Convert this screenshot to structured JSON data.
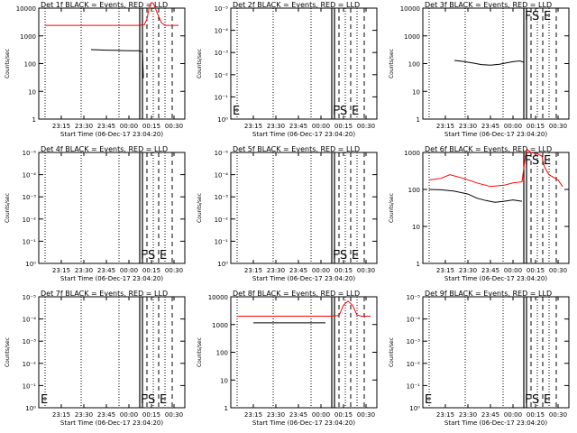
{
  "colors": {
    "events": "#000000",
    "lld": "#ff0000",
    "frame": "#000000"
  },
  "chart_data": [
    {
      "type": "line",
      "title": "Det 1f BLACK = Events, RED = LLD",
      "ylabel": "Counts/sec",
      "xlabel": "Start Time (06-Dec-17 23:04:20)",
      "ylog": true,
      "yticks": [
        "1",
        "10",
        "100",
        "1000",
        "10000"
      ],
      "xticks": [
        "23:15",
        "23:30",
        "23:45",
        "00:00",
        "00:15",
        "00:30"
      ],
      "markers": [],
      "series": [
        {
          "color": "black",
          "x": [
            23.58,
            23.65,
            23.75,
            23.85,
            23.95,
            24.05,
            24.12,
            24.15,
            24.16
          ],
          "y": [
            320,
            315,
            305,
            300,
            295,
            290,
            290,
            260,
            30
          ]
        },
        {
          "color": "red",
          "x": [
            23.07,
            23.5,
            24.1,
            24.17,
            24.2,
            24.22,
            24.25,
            24.27,
            24.32,
            24.36,
            24.4,
            24.55
          ],
          "y": [
            2400,
            2400,
            2400,
            2500,
            4000,
            9000,
            16000,
            15000,
            6000,
            3000,
            2400,
            2400
          ]
        }
      ]
    },
    {
      "type": "line",
      "title": "Det 2f BLACK = Events, RED = LLD",
      "ylabel": "Counts/sec",
      "xlabel": "Start Time (06-Dec-17 23:04:20)",
      "ylog": true,
      "yticks": [
        "10⁰",
        "10⁻¹",
        "10⁻²",
        "10⁻³",
        "10⁻⁴",
        "10⁻⁵"
      ],
      "xticks": [
        "23:15",
        "23:30",
        "23:45",
        "00:00",
        "00:15",
        "00:30"
      ],
      "markers": [
        "E",
        "F",
        "S",
        "E"
      ],
      "series": []
    },
    {
      "type": "line",
      "title": "Det 3f BLACK = Events, RED = LLD",
      "ylabel": "Counts/sec",
      "xlabel": "Start Time (06-Dec-17 23:04:20)",
      "ylog": true,
      "yticks": [
        "1",
        "10",
        "100",
        "1000",
        "10000"
      ],
      "xticks": [
        "23:15",
        "23:30",
        "23:45",
        "00:00",
        "00:15",
        "00:30"
      ],
      "markers": [
        "F",
        "S",
        "E"
      ],
      "series": [
        {
          "color": "black",
          "x": [
            23.35,
            23.45,
            23.55,
            23.65,
            23.75,
            23.85,
            23.95,
            24.02,
            24.08,
            24.12
          ],
          "y": [
            130,
            120,
            105,
            92,
            88,
            95,
            110,
            120,
            125,
            110
          ]
        }
      ]
    },
    {
      "type": "line",
      "title": "Det 4f BLACK = Events, RED = LLD",
      "ylabel": "Counts/sec",
      "xlabel": "Start Time (06-Dec-17 23:04:20)",
      "ylog": true,
      "yticks": [
        "10⁰",
        "10⁻¹",
        "10⁻²",
        "10⁻³",
        "10⁻⁴",
        "10⁻⁵"
      ],
      "xticks": [
        "23:15",
        "23:30",
        "23:45",
        "00:00",
        "00:15",
        "00:30"
      ],
      "markers": [
        "F",
        "S",
        "E"
      ],
      "series": []
    },
    {
      "type": "line",
      "title": "Det 5f BLACK = Events, RED = LLD",
      "ylabel": "Counts/sec",
      "xlabel": "Start Time (06-Dec-17 23:04:20)",
      "ylog": true,
      "yticks": [
        "10⁰",
        "10⁻¹",
        "10⁻²",
        "10⁻³",
        "10⁻⁴",
        "10⁻⁵"
      ],
      "xticks": [
        "23:15",
        "23:30",
        "23:45",
        "00:00",
        "00:15",
        "00:30"
      ],
      "markers": [
        "F",
        "S",
        "E"
      ],
      "series": []
    },
    {
      "type": "line",
      "title": "Det 6f BLACK = Events, RED = LLD",
      "ylabel": "Counts/sec",
      "xlabel": "Start Time (06-Dec-17 23:04:20)",
      "ylog": true,
      "yticks": [
        "1",
        "10",
        "100",
        "1000"
      ],
      "xticks": [
        "23:15",
        "23:30",
        "23:45",
        "00:00",
        "00:15",
        "00:30"
      ],
      "markers": [
        "F",
        "S",
        "E"
      ],
      "series": [
        {
          "color": "black",
          "x": [
            23.07,
            23.2,
            23.35,
            23.5,
            23.6,
            23.7,
            23.8,
            23.9,
            24.0,
            24.1
          ],
          "y": [
            100,
            98,
            90,
            75,
            58,
            50,
            45,
            48,
            52,
            48
          ]
        },
        {
          "color": "red",
          "x": [
            23.07,
            23.2,
            23.3,
            23.45,
            23.6,
            23.75,
            23.9,
            24.0,
            24.1,
            24.14,
            24.16,
            24.2,
            24.28,
            24.32,
            24.35,
            24.4,
            24.5,
            24.55
          ],
          "y": [
            180,
            200,
            250,
            200,
            150,
            120,
            130,
            150,
            160,
            900,
            1200,
            1000,
            900,
            800,
            400,
            250,
            180,
            120
          ]
        }
      ]
    },
    {
      "type": "line",
      "title": "Det 7f BLACK = Events, RED = LLD",
      "ylabel": "Counts/sec",
      "xlabel": "Start Time (06-Dec-17 23:04:20)",
      "ylog": true,
      "yticks": [
        "10⁰",
        "10⁻¹",
        "10⁻²",
        "10⁻³",
        "10⁻⁴",
        "10⁻⁵"
      ],
      "xticks": [
        "23:15",
        "23:30",
        "23:45",
        "00:00",
        "00:15",
        "00:30"
      ],
      "markers": [
        "E",
        "F",
        "S",
        "E"
      ],
      "series": []
    },
    {
      "type": "line",
      "title": "Det 8f BLACK = Events, RED = LLD",
      "ylabel": "Counts/sec",
      "xlabel": "Start Time (06-Dec-17 23:04:20)",
      "ylog": true,
      "yticks": [
        "1",
        "10",
        "100",
        "1000",
        "10000"
      ],
      "xticks": [
        "23:15",
        "23:30",
        "23:45",
        "00:00",
        "00:15",
        "00:30"
      ],
      "markers": [],
      "series": [
        {
          "color": "black",
          "x": [
            23.25,
            23.4,
            23.55,
            23.7,
            23.85,
            24.0,
            24.05
          ],
          "y": [
            1150,
            1150,
            1150,
            1150,
            1150,
            1150,
            1150
          ]
        },
        {
          "color": "red",
          "x": [
            23.07,
            23.5,
            24.05,
            24.1,
            24.2,
            24.25,
            24.3,
            24.35,
            24.4,
            24.45,
            24.55
          ],
          "y": [
            2000,
            2000,
            2000,
            2000,
            2100,
            5000,
            7000,
            5000,
            2200,
            2000,
            2000
          ]
        }
      ]
    },
    {
      "type": "line",
      "title": "Det 9f BLACK = Events, RED = LLD",
      "ylabel": "Counts/sec",
      "xlabel": "Start Time (06-Dec-17 23:04:20)",
      "ylog": true,
      "yticks": [
        "10⁰",
        "10⁻¹",
        "10⁻²",
        "10⁻³",
        "10⁻⁴",
        "10⁻⁵"
      ],
      "xticks": [
        "23:15",
        "23:30",
        "23:45",
        "00:00",
        "00:15",
        "00:30"
      ],
      "markers": [
        "E",
        "F",
        "S",
        "E"
      ],
      "series": []
    }
  ]
}
